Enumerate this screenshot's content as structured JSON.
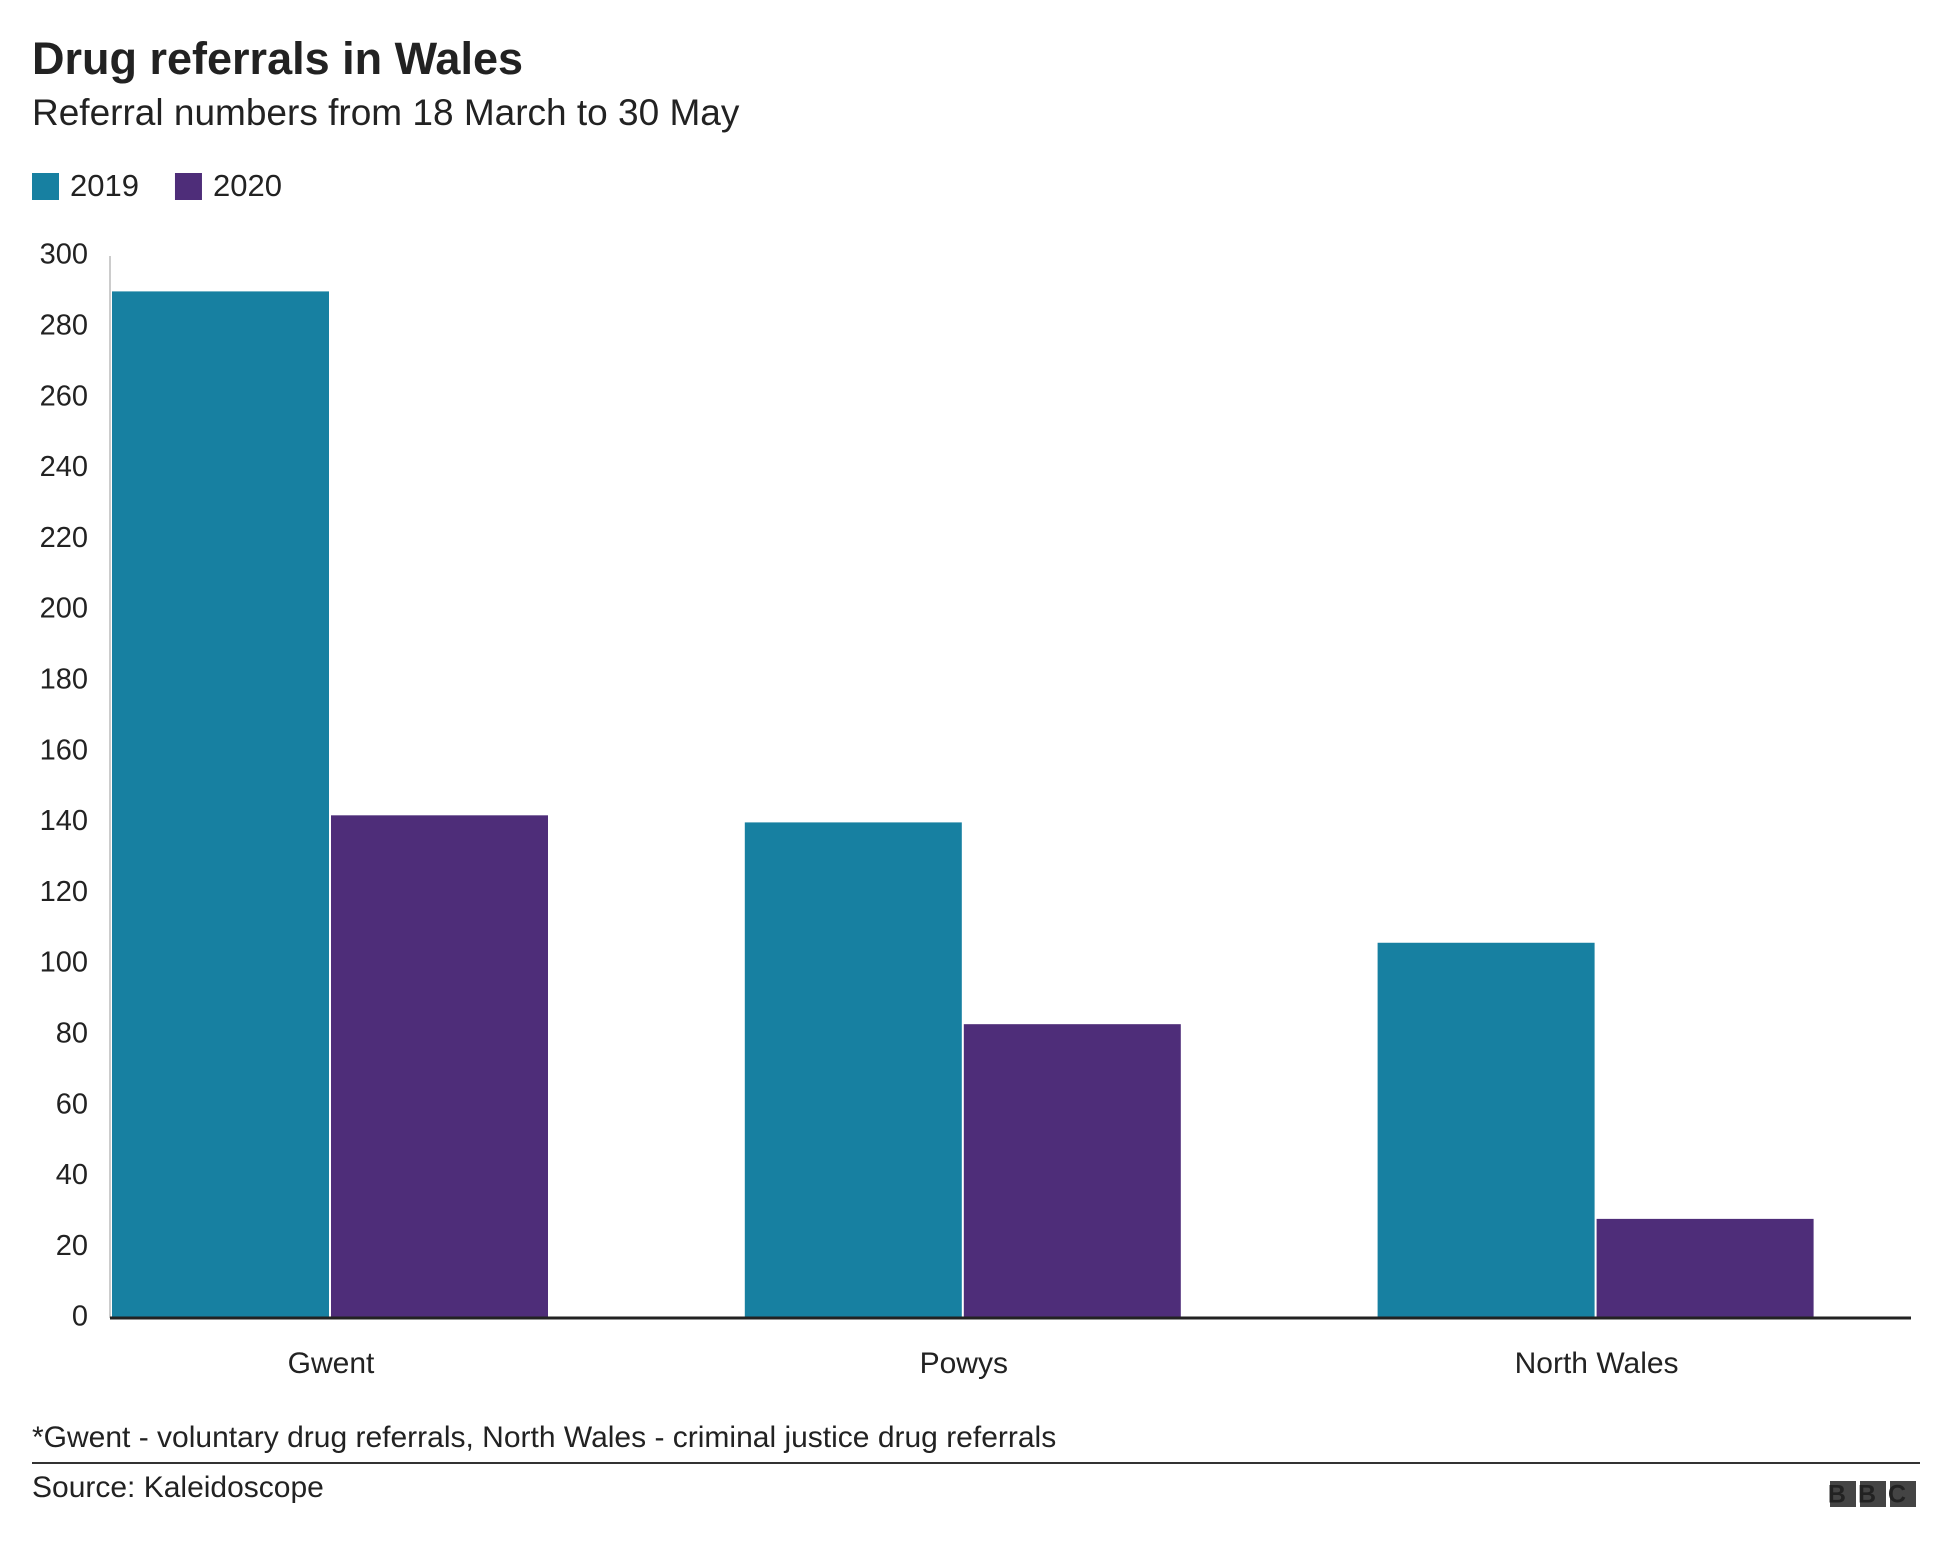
{
  "chart_data": {
    "type": "bar",
    "title": "Drug referrals in Wales",
    "subtitle": "Referral numbers from 18 March to 30 May",
    "categories": [
      "Gwent",
      "Powys",
      "North Wales"
    ],
    "series": [
      {
        "name": "2019",
        "color": "#1780a1",
        "values": [
          290,
          140,
          106
        ]
      },
      {
        "name": "2020",
        "color": "#4e2d79",
        "values": [
          142,
          83,
          28
        ]
      }
    ],
    "ylim": [
      0,
      300
    ],
    "yticks": [
      0,
      20,
      40,
      60,
      80,
      100,
      120,
      140,
      160,
      180,
      200,
      220,
      240,
      260,
      280,
      300
    ],
    "grid": false,
    "legend": "top-left",
    "footnote": "*Gwent - voluntary drug referrals, North Wales - criminal justice drug referrals",
    "source": "Source: Kaleidoscope",
    "logo": "BBC"
  }
}
